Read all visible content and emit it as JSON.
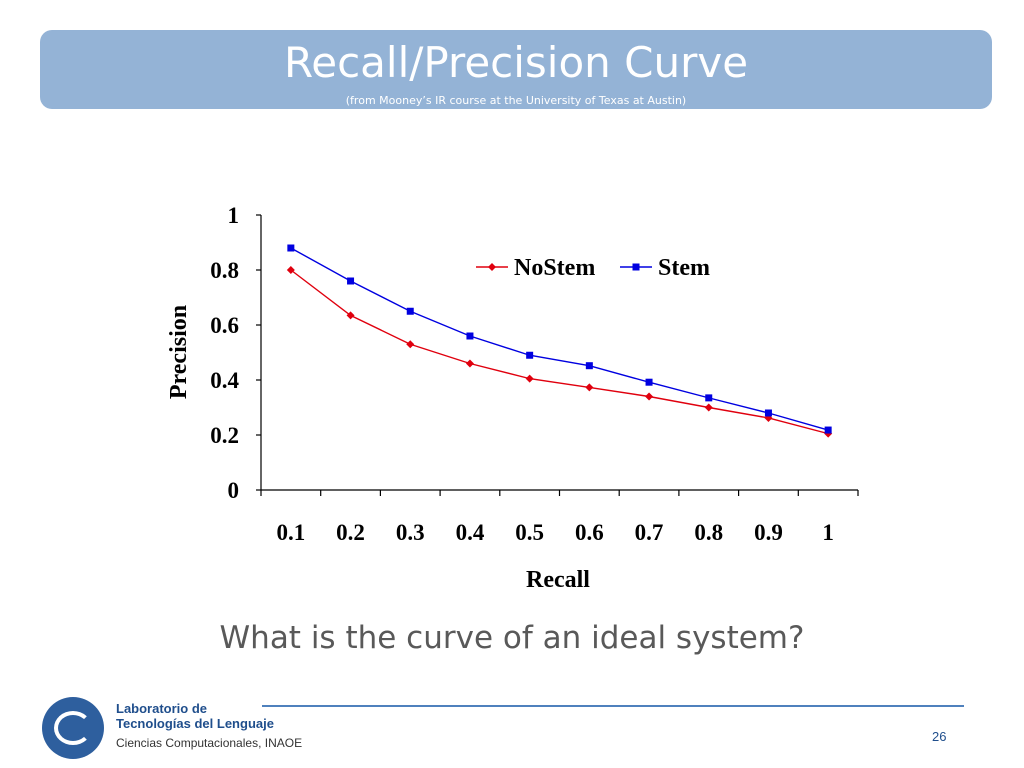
{
  "slide": {
    "title": "Recall/Precision Curve",
    "subtitle": "(from Mooney’s IR course at the University of Texas at Austin)",
    "question": "What is the curve of an ideal system?",
    "page_number": "26"
  },
  "footer": {
    "org_line1": "Laboratorio de",
    "org_line2": "Tecnologías del Lenguaje",
    "org_line3": "Ciencias Computacionales, INAOE"
  },
  "colors": {
    "banner": "#94b3d6",
    "nostem": "#e0000e",
    "stem": "#0000e0"
  },
  "chart_data": {
    "type": "line",
    "x": [
      0.1,
      0.2,
      0.3,
      0.4,
      0.5,
      0.6,
      0.7,
      0.8,
      0.9,
      1
    ],
    "x_tick_labels": [
      "0.1",
      "0.2",
      "0.3",
      "0.4",
      "0.5",
      "0.6",
      "0.7",
      "0.8",
      "0.9",
      "1"
    ],
    "y_tick_labels": [
      "0",
      "0.2",
      "0.4",
      "0.6",
      "0.8",
      "1"
    ],
    "ylim": [
      0,
      1
    ],
    "xlabel": "Recall",
    "ylabel": "Precision",
    "legend_position": "top-right",
    "grid": false,
    "series": [
      {
        "name": "NoStem",
        "color": "#e0000e",
        "marker": "diamond",
        "values": [
          0.8,
          0.635,
          0.53,
          0.46,
          0.405,
          0.373,
          0.34,
          0.3,
          0.262,
          0.205
        ]
      },
      {
        "name": "Stem",
        "color": "#0000e0",
        "marker": "square",
        "values": [
          0.88,
          0.76,
          0.65,
          0.56,
          0.49,
          0.452,
          0.392,
          0.335,
          0.28,
          0.218
        ]
      }
    ]
  }
}
